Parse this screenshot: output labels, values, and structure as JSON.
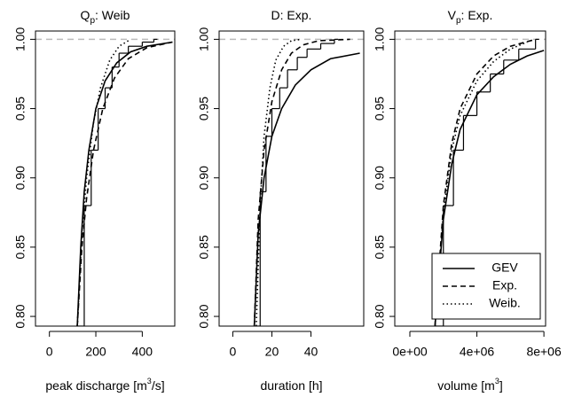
{
  "chart_data": [
    {
      "type": "line",
      "title": [
        {
          "text": "Q"
        },
        {
          "text": "p",
          "script": "sub"
        },
        {
          "text": ": Weib"
        }
      ],
      "x_label": [
        {
          "text": "peak discharge [m"
        },
        {
          "text": "3",
          "script": "super"
        },
        {
          "text": "/s]"
        }
      ],
      "xlim": [
        -60,
        540
      ],
      "xticks": [
        0,
        200,
        400
      ],
      "ylim": [
        0.793,
        1.006
      ],
      "yticks": [
        {
          "value": 0.8,
          "label": "0.80"
        },
        {
          "value": 0.85,
          "label": "0.85"
        },
        {
          "value": 0.9,
          "label": "0.90"
        },
        {
          "value": 0.95,
          "label": "0.95"
        },
        {
          "value": 1.0,
          "label": "1.00"
        }
      ],
      "hline": 1.0,
      "hline_color": "#bbbbbb",
      "series": [
        {
          "name": "GEV",
          "color": "#000000",
          "style": "solid",
          "x": [
            120,
            135,
            150,
            170,
            200,
            240,
            290,
            350,
            420,
            530
          ],
          "values": [
            0.793,
            0.85,
            0.89,
            0.92,
            0.95,
            0.97,
            0.983,
            0.991,
            0.995,
            0.998
          ]
        },
        {
          "name": "Exp.",
          "color": "#000000",
          "style": "dashed",
          "x": [
            120,
            140,
            160,
            190,
            230,
            280,
            340,
            420,
            530
          ],
          "values": [
            0.793,
            0.85,
            0.885,
            0.92,
            0.95,
            0.972,
            0.986,
            0.994,
            0.998
          ]
        },
        {
          "name": "Weib.",
          "color": "#000000",
          "style": "dotted",
          "x": [
            120,
            140,
            160,
            190,
            220,
            260,
            300,
            350
          ],
          "values": [
            0.793,
            0.86,
            0.9,
            0.94,
            0.965,
            0.985,
            0.995,
            1.0
          ]
        },
        {
          "color": "#000000",
          "style": "step",
          "x": [
            120,
            150,
            180,
            210,
            240,
            270,
            300,
            340,
            400,
            450
          ],
          "values": [
            0.793,
            0.88,
            0.92,
            0.95,
            0.965,
            0.98,
            0.99,
            0.995,
            0.998,
            1.0
          ]
        }
      ]
    },
    {
      "type": "line",
      "title": [
        {
          "text": "D: Exp."
        }
      ],
      "x_label": [
        {
          "text": "duration [h]"
        }
      ],
      "xlim": [
        -7,
        67
      ],
      "xticks": [
        0,
        20,
        40
      ],
      "ylim": [
        0.793,
        1.006
      ],
      "yticks": [
        {
          "value": 0.8,
          "label": "0.80"
        },
        {
          "value": 0.85,
          "label": "0.85"
        },
        {
          "value": 0.9,
          "label": "0.90"
        },
        {
          "value": 0.95,
          "label": "0.95"
        },
        {
          "value": 1.0,
          "label": "1.00"
        }
      ],
      "hline": 1.0,
      "hline_color": "#bbbbbb",
      "series": [
        {
          "name": "GEV",
          "color": "#000000",
          "style": "solid",
          "x": [
            11,
            13,
            16,
            20,
            25,
            32,
            40,
            50,
            65
          ],
          "values": [
            0.793,
            0.86,
            0.9,
            0.93,
            0.95,
            0.967,
            0.978,
            0.986,
            0.99
          ]
        },
        {
          "name": "Exp.",
          "color": "#000000",
          "style": "dashed",
          "x": [
            11,
            13,
            16,
            20,
            25,
            30,
            36,
            44,
            60
          ],
          "values": [
            0.793,
            0.87,
            0.92,
            0.955,
            0.978,
            0.99,
            0.996,
            0.999,
            1.0
          ]
        },
        {
          "name": "Weib.",
          "color": "#000000",
          "style": "dotted",
          "x": [
            12,
            14,
            16,
            19,
            22,
            26,
            30,
            35
          ],
          "values": [
            0.793,
            0.88,
            0.93,
            0.965,
            0.985,
            0.995,
            0.999,
            1.0
          ]
        },
        {
          "color": "#000000",
          "style": "step",
          "x": [
            11,
            14,
            17,
            20,
            24,
            28,
            33,
            38,
            45,
            52
          ],
          "values": [
            0.793,
            0.89,
            0.93,
            0.95,
            0.965,
            0.978,
            0.987,
            0.993,
            0.997,
            1.0
          ]
        }
      ]
    },
    {
      "type": "line",
      "title": [
        {
          "text": "V"
        },
        {
          "text": "p",
          "script": "sub"
        },
        {
          "text": ": Exp."
        }
      ],
      "x_label": [
        {
          "text": "volume [m"
        },
        {
          "text": "3",
          "script": "super"
        },
        {
          "text": "]"
        }
      ],
      "xlim": [
        -900000,
        8100000
      ],
      "xticks": [
        {
          "value": 0,
          "label": "0e+00"
        },
        {
          "value": 4000000,
          "label": "4e+06"
        },
        {
          "value": 8000000,
          "label": "8e+06"
        }
      ],
      "ylim": [
        0.793,
        1.006
      ],
      "yticks": [
        {
          "value": 0.8,
          "label": "0.80"
        },
        {
          "value": 0.85,
          "label": "0.85"
        },
        {
          "value": 0.9,
          "label": "0.90"
        },
        {
          "value": 0.95,
          "label": "0.95"
        },
        {
          "value": 1.0,
          "label": "1.00"
        }
      ],
      "hline": 1.0,
      "hline_color": "#bbbbbb",
      "legend": "bottom right",
      "series": [
        {
          "name": "GEV",
          "color": "#000000",
          "style": "solid",
          "x": [
            1500000,
            2000000,
            2500000,
            3000000,
            4000000,
            5000000,
            6000000,
            7000000,
            8000000
          ],
          "values": [
            0.793,
            0.87,
            0.91,
            0.935,
            0.96,
            0.973,
            0.982,
            0.988,
            0.992
          ]
        },
        {
          "name": "Exp.",
          "color": "#000000",
          "style": "dashed",
          "x": [
            1500000,
            2000000,
            2500000,
            3000000,
            4000000,
            5000000,
            6000000,
            7500000
          ],
          "values": [
            0.793,
            0.88,
            0.925,
            0.95,
            0.975,
            0.988,
            0.995,
            1.0
          ]
        },
        {
          "name": "Weib.",
          "color": "#000000",
          "style": "dotted",
          "x": [
            1500000,
            2000000,
            2500000,
            3000000,
            4000000,
            5000000,
            6000000,
            7000000
          ],
          "values": [
            0.793,
            0.875,
            0.92,
            0.945,
            0.97,
            0.984,
            0.993,
            0.998
          ]
        },
        {
          "color": "#000000",
          "style": "step",
          "x": [
            1500000,
            2000000,
            2600000,
            3200000,
            4000000,
            4800000,
            5600000,
            6500000,
            7500000
          ],
          "values": [
            0.793,
            0.88,
            0.92,
            0.945,
            0.962,
            0.975,
            0.985,
            0.993,
            1.0
          ]
        }
      ]
    }
  ]
}
